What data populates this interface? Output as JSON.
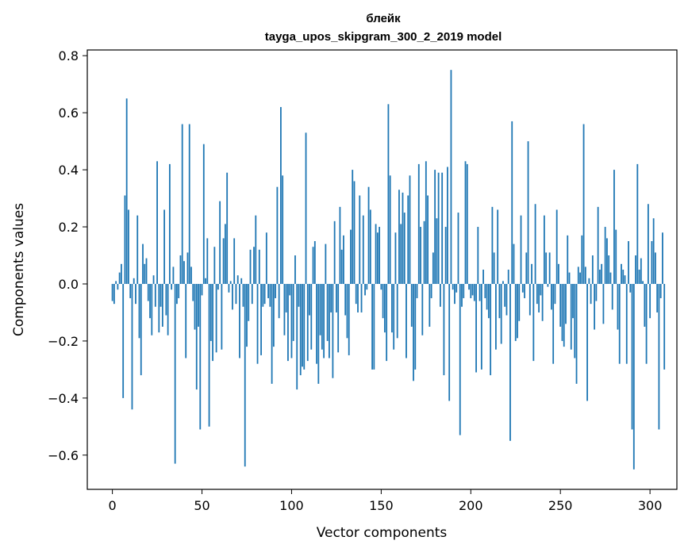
{
  "chart_data": {
    "type": "bar",
    "title": "блейк",
    "subtitle": "tayga_upos_skipgram_300_2_2019 model",
    "xlabel": "Vector components",
    "ylabel": "Components values",
    "xlim": [
      -14,
      315
    ],
    "ylim": [
      -0.72,
      0.82
    ],
    "xticks": [
      0,
      50,
      100,
      150,
      200,
      250,
      300
    ],
    "xtick_labels": [
      "0",
      "50",
      "100",
      "150",
      "200",
      "250",
      "300"
    ],
    "yticks": [
      -0.6,
      -0.4,
      -0.2,
      0.0,
      0.2,
      0.4,
      0.6,
      0.8
    ],
    "ytick_labels": [
      "−0.6",
      "−0.4",
      "−0.2",
      "0.0",
      "0.2",
      "0.4",
      "0.6",
      "0.8"
    ],
    "grid": false,
    "bar_color": "#1f77b4",
    "series": [
      {
        "values": [
          -0.06,
          -0.07,
          0.01,
          -0.02,
          0.04,
          0.07,
          -0.4,
          0.31,
          0.65,
          0.26,
          -0.05,
          -0.44,
          0.02,
          -0.07,
          0.24,
          -0.19,
          -0.32,
          0.14,
          0.07,
          0.09,
          -0.06,
          -0.12,
          -0.18,
          0.03,
          -0.08,
          0.43,
          -0.17,
          -0.08,
          -0.15,
          0.26,
          -0.11,
          -0.18,
          0.42,
          -0.02,
          0.06,
          -0.63,
          -0.07,
          -0.05,
          0.1,
          0.56,
          0.08,
          -0.26,
          0.11,
          0.56,
          0.06,
          -0.06,
          -0.16,
          -0.37,
          -0.15,
          -0.51,
          -0.04,
          0.49,
          0.02,
          0.16,
          -0.5,
          -0.2,
          -0.27,
          0.13,
          -0.24,
          -0.02,
          0.29,
          -0.23,
          0.16,
          0.21,
          0.39,
          -0.03,
          0.01,
          -0.09,
          0.16,
          -0.07,
          0.03,
          -0.26,
          0.02,
          -0.08,
          -0.64,
          -0.22,
          -0.13,
          0.12,
          -0.07,
          0.13,
          0.24,
          -0.28,
          0.12,
          -0.25,
          -0.08,
          -0.07,
          0.18,
          -0.05,
          -0.08,
          -0.35,
          -0.22,
          -0.05,
          0.34,
          -0.12,
          0.62,
          0.38,
          -0.18,
          -0.1,
          -0.27,
          -0.04,
          -0.26,
          -0.2,
          0.1,
          -0.37,
          -0.08,
          -0.32,
          -0.29,
          -0.3,
          0.53,
          -0.27,
          -0.11,
          -0.23,
          0.13,
          0.15,
          -0.28,
          -0.35,
          -0.18,
          -0.23,
          -0.26,
          0.14,
          -0.2,
          -0.26,
          -0.1,
          -0.33,
          0.22,
          -0.1,
          -0.24,
          0.27,
          0.12,
          0.17,
          -0.11,
          -0.19,
          -0.25,
          0.19,
          0.4,
          0.36,
          -0.07,
          -0.1,
          0.31,
          -0.1,
          0.24,
          -0.04,
          -0.02,
          0.34,
          0.26,
          -0.3,
          -0.3,
          0.21,
          0.18,
          0.2,
          -0.02,
          -0.12,
          -0.17,
          -0.27,
          0.63,
          0.38,
          -0.17,
          -0.23,
          0.18,
          -0.19,
          0.33,
          0.21,
          0.32,
          0.25,
          -0.26,
          0.31,
          0.38,
          -0.15,
          -0.34,
          -0.3,
          -0.05,
          0.42,
          0.2,
          -0.18,
          0.22,
          0.43,
          0.31,
          -0.15,
          -0.05,
          0.11,
          0.4,
          0.23,
          0.39,
          -0.08,
          0.39,
          -0.32,
          0.2,
          0.41,
          -0.41,
          0.75,
          -0.02,
          -0.07,
          -0.03,
          0.25,
          -0.53,
          -0.08,
          -0.05,
          0.43,
          0.42,
          -0.02,
          -0.05,
          -0.04,
          -0.06,
          -0.31,
          0.2,
          -0.06,
          -0.3,
          0.05,
          -0.05,
          -0.09,
          -0.12,
          -0.32,
          0.27,
          0.11,
          -0.23,
          0.26,
          -0.12,
          -0.21,
          0.01,
          -0.08,
          -0.11,
          0.05,
          -0.55,
          0.57,
          0.14,
          -0.2,
          -0.19,
          -0.13,
          0.24,
          -0.03,
          -0.05,
          0.11,
          0.5,
          -0.11,
          0.07,
          -0.27,
          0.28,
          -0.07,
          -0.1,
          -0.04,
          -0.13,
          0.24,
          0.11,
          -0.01,
          0.11,
          -0.09,
          -0.28,
          -0.07,
          0.26,
          0.07,
          -0.15,
          -0.2,
          -0.22,
          -0.14,
          0.17,
          0.04,
          -0.23,
          -0.12,
          -0.26,
          -0.35,
          0.06,
          0.04,
          0.17,
          0.56,
          0.06,
          -0.41,
          0.02,
          -0.07,
          0.1,
          -0.16,
          -0.06,
          0.27,
          0.05,
          0.07,
          -0.14,
          0.2,
          0.16,
          0.1,
          0.04,
          -0.09,
          0.4,
          0.19,
          -0.16,
          -0.28,
          0.07,
          0.05,
          0.03,
          -0.28,
          0.15,
          -0.03,
          -0.51,
          -0.65,
          0.1,
          0.42,
          0.05,
          0.09,
          0.01,
          -0.15,
          -0.28,
          0.28,
          -0.12,
          0.15,
          0.23,
          0.11,
          -0.1,
          -0.51,
          -0.05,
          0.18,
          -0.3
        ]
      }
    ]
  }
}
